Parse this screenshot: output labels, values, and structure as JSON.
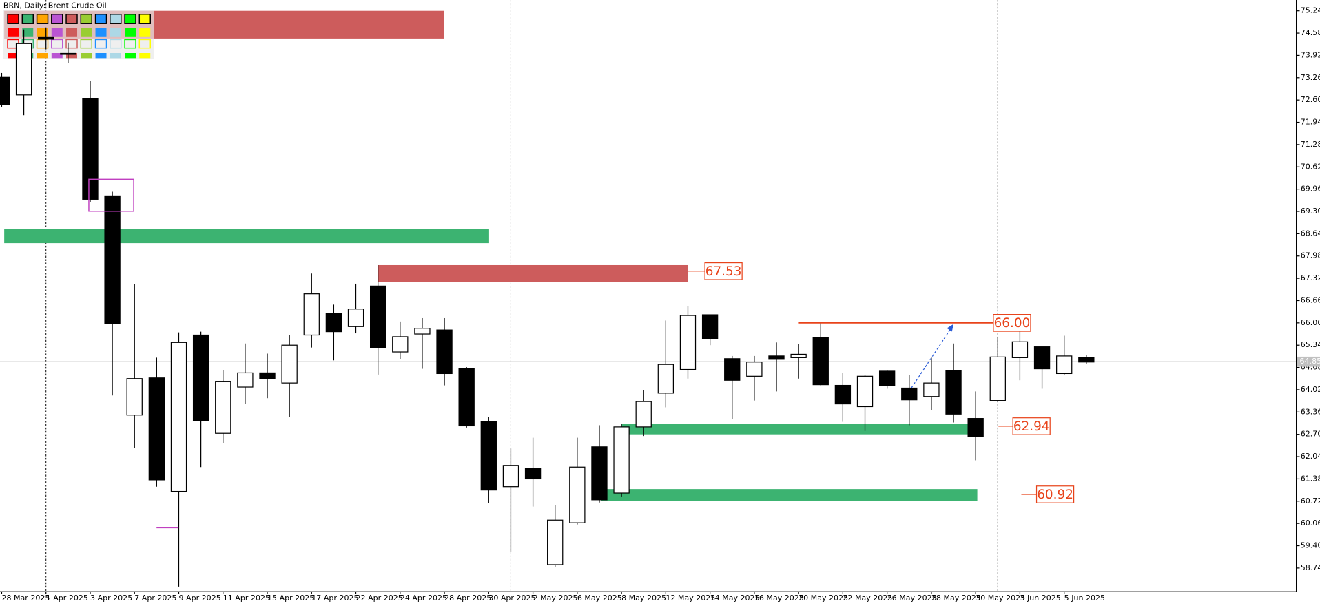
{
  "chart_data": {
    "type": "candlestick",
    "title": "BRN, Daily: Brent Crude Oil",
    "categories": [
      "28 Mar 2025",
      null,
      "1 Apr 2025",
      null,
      "3 Apr 2025",
      null,
      "7 Apr 2025",
      null,
      "9 Apr 2025",
      null,
      "11 Apr 2025",
      null,
      "15 Apr 2025",
      null,
      "17 Apr 2025",
      null,
      "22 Apr 2025",
      null,
      "24 Apr 2025",
      null,
      "28 Apr 2025",
      null,
      "30 Apr 2025",
      null,
      "2 May 2025",
      null,
      "6 May 2025",
      null,
      "8 May 2025",
      null,
      "12 May 2025",
      null,
      "14 May 2025",
      null,
      "16 May 2025",
      null,
      "20 May 2025",
      null,
      "22 May 2025",
      null,
      "26 May 2025",
      null,
      "28 May 2025",
      null,
      "30 May 2025",
      null,
      "3 Jun 2025",
      null,
      "5 Jun 2025",
      null
    ],
    "open": [
      73.27,
      72.75,
      74.45,
      73.98,
      72.65,
      69.76,
      63.27,
      64.37,
      61.01,
      65.64,
      62.73,
      64.1,
      64.52,
      64.22,
      65.64,
      66.27,
      65.89,
      67.09,
      65.14,
      65.67,
      65.79,
      64.64,
      63.07,
      61.15,
      61.7,
      58.84,
      60.08,
      62.33,
      60.96,
      62.92,
      63.92,
      64.62,
      66.24,
      64.94,
      64.42,
      65.02,
      64.97,
      65.57,
      64.15,
      63.52,
      64.57,
      64.07,
      63.82,
      64.59,
      63.17,
      63.7,
      64.97,
      65.29,
      64.5,
      64.97
    ],
    "high": [
      73.4,
      74.69,
      74.75,
      74.3,
      73.17,
      69.88,
      67.14,
      64.97,
      65.72,
      65.74,
      64.59,
      65.39,
      65.09,
      65.64,
      67.46,
      66.54,
      67.16,
      67.71,
      66.04,
      66.14,
      66.14,
      64.69,
      63.22,
      62.28,
      62.6,
      60.61,
      62.6,
      62.97,
      63.02,
      64.0,
      66.07,
      66.49,
      66.24,
      65.02,
      65.02,
      65.42,
      65.37,
      65.99,
      64.52,
      64.45,
      64.59,
      64.45,
      64.97,
      65.39,
      63.97,
      65.57,
      65.77,
      65.29,
      65.62,
      65.04
    ],
    "low": [
      72.4,
      72.15,
      74.1,
      73.7,
      69.58,
      63.85,
      62.3,
      61.15,
      58.19,
      61.73,
      62.43,
      63.6,
      63.77,
      63.22,
      65.27,
      64.89,
      65.69,
      64.47,
      64.92,
      64.64,
      64.15,
      62.9,
      60.66,
      59.21,
      60.56,
      58.76,
      60.03,
      60.68,
      60.86,
      62.65,
      63.5,
      64.35,
      65.34,
      63.15,
      63.7,
      63.97,
      64.35,
      64.15,
      63.07,
      62.8,
      64.05,
      62.97,
      63.42,
      63.05,
      61.93,
      63.65,
      64.3,
      64.05,
      64.45,
      64.79
    ],
    "close": [
      72.47,
      74.27,
      74.4,
      73.95,
      69.66,
      65.97,
      64.35,
      61.35,
      65.42,
      63.1,
      64.27,
      64.52,
      64.35,
      65.34,
      66.86,
      65.74,
      66.41,
      65.27,
      65.59,
      65.84,
      64.5,
      62.95,
      61.05,
      61.78,
      61.38,
      60.16,
      61.73,
      60.76,
      62.92,
      63.67,
      64.77,
      66.22,
      65.52,
      64.3,
      64.84,
      64.92,
      65.07,
      64.17,
      63.6,
      64.42,
      64.15,
      63.72,
      64.22,
      63.3,
      62.63,
      64.99,
      65.44,
      64.64,
      65.02,
      64.84
    ],
    "up_color": "#ffffff",
    "down_color": "#000000",
    "ylim": [
      58.04,
      75.56
    ],
    "yticks": [
      75.24,
      74.58,
      73.92,
      73.26,
      {
        "value": 72.6,
        "label": "72.60"
      },
      71.94,
      71.28,
      70.62,
      69.96,
      {
        "value": 69.3,
        "label": "69.30"
      },
      68.64,
      67.98,
      67.32,
      66.66,
      {
        "value": 66,
        "label": "66.00"
      },
      65.34,
      64.68,
      64.02,
      63.36,
      {
        "value": 62.7,
        "label": "62.70"
      },
      62.04,
      61.38,
      60.72,
      60.06,
      {
        "value": 59.4,
        "label": "59.40"
      },
      58.74
    ],
    "price": {
      "value": 64.85,
      "label": "64.85"
    },
    "zones": [
      {
        "high": 75.24,
        "low": 74.42,
        "color": "#cd5c5c"
      },
      {
        "high": 68.78,
        "low": 68.36,
        "color": "#3cb371"
      },
      {
        "high": 67.71,
        "low": 67.21,
        "color": "#cd5c5c"
      },
      {
        "high": 63.0,
        "low": 62.7,
        "color": "#3cb371"
      },
      {
        "high": 61.08,
        "low": 60.73,
        "color": "#3cb371"
      }
    ],
    "levels": [
      {
        "value": 67.53,
        "label": "67.53"
      },
      {
        "value": 66,
        "label": "66.00"
      },
      {
        "value": 62.94,
        "label": "62.94"
      },
      {
        "value": 60.92,
        "label": "60.92"
      }
    ],
    "level_color": "#e8431a"
  }
}
